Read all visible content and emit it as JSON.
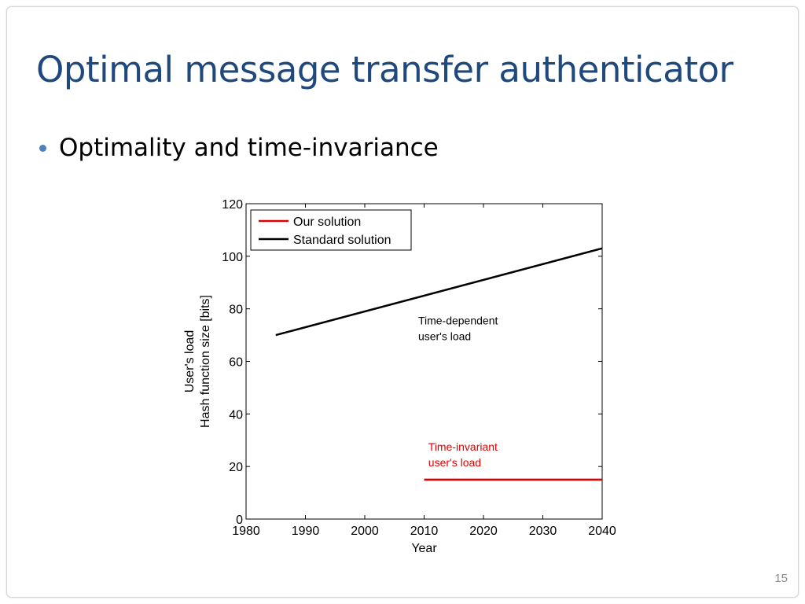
{
  "slide": {
    "title": "Optimal message transfer authenticator",
    "bullet": "Optimality and time-invariance",
    "page_number": "15",
    "colors": {
      "title": "#1f497d",
      "bullet": "#4f81bd"
    }
  },
  "chart_data": {
    "type": "line",
    "title": "",
    "xlabel": "Year",
    "ylabel_lines": [
      "User's load",
      "Hash function size [bits]"
    ],
    "xlim": [
      1980,
      2040
    ],
    "ylim": [
      0,
      120
    ],
    "xticks": [
      1980,
      1990,
      2000,
      2010,
      2020,
      2030,
      2040
    ],
    "yticks": [
      0,
      20,
      40,
      60,
      80,
      100,
      120
    ],
    "grid": false,
    "legend_position": "top-left",
    "series": [
      {
        "name": "Our solution",
        "color": "#e00000",
        "x": [
          2010,
          2040
        ],
        "y": [
          15,
          15
        ]
      },
      {
        "name": "Standard solution",
        "color": "#000000",
        "x": [
          1985,
          2040
        ],
        "y": [
          70,
          103
        ]
      }
    ],
    "annotations": [
      {
        "lines": [
          "Time-dependent",
          "user's load"
        ],
        "x": 2009,
        "y": 74,
        "color": "#000000"
      },
      {
        "lines": [
          "Time-invariant",
          "user's load"
        ],
        "x": 2010.7,
        "y": 26,
        "color": "#e00000"
      }
    ]
  }
}
